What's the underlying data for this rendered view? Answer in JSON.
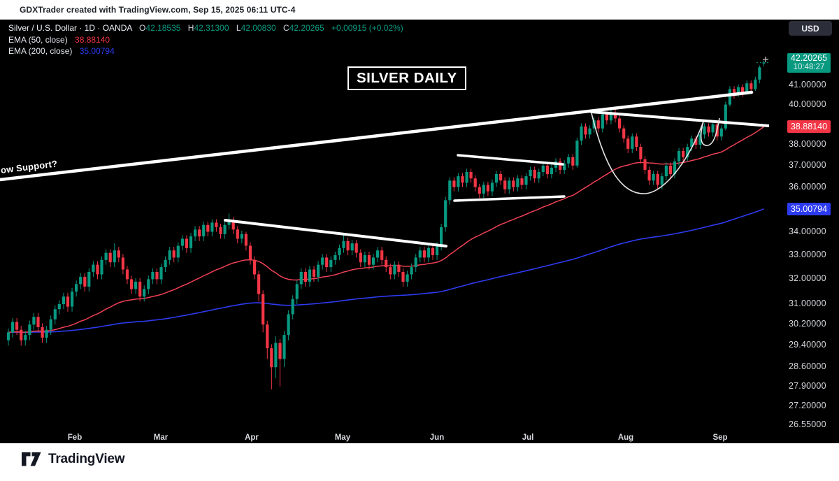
{
  "header": {
    "credit": "GDXTrader created with TradingView.com, Sep 15, 2025 06:11 UTC-4"
  },
  "legend": {
    "symbol": "Silver / U.S. Dollar · 1D · OANDA",
    "o_label": "O",
    "o_value": "42.18535",
    "h_label": "H",
    "h_value": "42.31300",
    "l_label": "L",
    "l_value": "42.00830",
    "c_label": "C",
    "c_value": "42.20265",
    "change": "+0.00915 (+0.02%)",
    "ema50_label": "EMA (50, close)",
    "ema50_value": "38.88140",
    "ema200_label": "EMA (200, close)",
    "ema200_value": "35.00794"
  },
  "toolbar": {
    "currency": "USD"
  },
  "annotations": {
    "title_box": "SILVER DAILY",
    "support_label": "ow Support?"
  },
  "price_scale": {
    "last_badge": {
      "price": "42.20265",
      "countdown": "10:48:27"
    },
    "ema50_badge": "38.88140",
    "ema200_badge": "35.00794",
    "ticks": [
      "41.00000",
      "40.00000",
      "38.00000",
      "37.00000",
      "36.00000",
      "34.00000",
      "33.00000",
      "32.00000",
      "31.00000",
      "30.20000",
      "29.40000",
      "28.60000",
      "27.90000",
      "27.20000",
      "26.55000"
    ]
  },
  "time_scale": {
    "months": [
      "Feb",
      "Mar",
      "Apr",
      "May",
      "Jun",
      "Jul",
      "Aug",
      "Sep"
    ]
  },
  "footer": {
    "brand": "TradingView"
  },
  "colors": {
    "up": "#089981",
    "down": "#f23645",
    "ema50_line": "#ef4155",
    "ema200_line": "#2d3bf0",
    "drawing": "#ffffff"
  },
  "chart_data": {
    "type": "candlestick",
    "symbol": "Silver / U.S. Dollar",
    "timeframe": "1D",
    "exchange": "OANDA",
    "scale": "log",
    "y_domain": [
      26.55,
      42.6
    ],
    "x_months": [
      "Feb",
      "Mar",
      "Apr",
      "May",
      "Jun",
      "Jul",
      "Aug",
      "Sep"
    ],
    "last": {
      "open": 42.18535,
      "high": 42.313,
      "low": 42.0083,
      "close": 42.20265,
      "change": 0.00915,
      "change_pct": 0.02
    },
    "ema50": 38.8814,
    "ema200": 35.00794,
    "candles": [
      [
        29.6,
        30.05,
        29.4,
        29.9
      ],
      [
        29.9,
        30.45,
        29.7,
        30.3
      ],
      [
        30.3,
        30.45,
        29.8,
        30.0
      ],
      [
        30.0,
        30.15,
        29.4,
        29.6
      ],
      [
        29.6,
        29.95,
        29.4,
        29.8
      ],
      [
        29.8,
        30.35,
        29.6,
        30.2
      ],
      [
        30.2,
        30.65,
        30.0,
        30.5
      ],
      [
        30.5,
        30.65,
        29.9,
        30.1
      ],
      [
        30.1,
        30.25,
        29.5,
        29.7
      ],
      [
        29.7,
        30.15,
        29.5,
        30.0
      ],
      [
        30.0,
        30.55,
        29.8,
        30.4
      ],
      [
        30.4,
        30.95,
        30.2,
        30.8
      ],
      [
        30.8,
        31.15,
        30.6,
        31.0
      ],
      [
        31.0,
        31.45,
        30.8,
        31.3
      ],
      [
        31.3,
        31.45,
        30.7,
        30.9
      ],
      [
        30.9,
        31.65,
        30.7,
        31.5
      ],
      [
        31.5,
        31.95,
        31.3,
        31.8
      ],
      [
        31.8,
        32.25,
        31.6,
        32.1
      ],
      [
        32.1,
        32.25,
        31.5,
        31.7
      ],
      [
        31.7,
        32.45,
        31.5,
        32.3
      ],
      [
        32.3,
        32.75,
        32.1,
        32.6
      ],
      [
        32.6,
        32.75,
        32.0,
        32.2
      ],
      [
        32.2,
        32.95,
        32.0,
        32.8
      ],
      [
        32.8,
        33.25,
        32.6,
        33.1
      ],
      [
        33.1,
        33.25,
        32.5,
        32.7
      ],
      [
        32.7,
        33.5,
        32.5,
        33.2
      ],
      [
        33.2,
        33.35,
        32.7,
        32.9
      ],
      [
        32.9,
        33.05,
        32.2,
        32.4
      ],
      [
        32.4,
        32.55,
        31.8,
        32.0
      ],
      [
        32.0,
        32.15,
        31.4,
        31.6
      ],
      [
        31.6,
        32.05,
        31.4,
        31.9
      ],
      [
        31.9,
        32.05,
        31.1,
        31.3
      ],
      [
        31.3,
        31.75,
        31.1,
        31.6
      ],
      [
        31.6,
        32.15,
        31.4,
        32.0
      ],
      [
        32.0,
        32.45,
        31.8,
        32.3
      ],
      [
        32.3,
        32.45,
        31.8,
        32.0
      ],
      [
        32.0,
        32.65,
        31.8,
        32.5
      ],
      [
        32.5,
        32.95,
        32.3,
        32.8
      ],
      [
        32.8,
        33.35,
        32.6,
        33.2
      ],
      [
        33.2,
        33.35,
        32.7,
        32.9
      ],
      [
        32.9,
        33.55,
        32.7,
        33.4
      ],
      [
        33.4,
        33.85,
        33.2,
        33.7
      ],
      [
        33.7,
        33.85,
        33.1,
        33.3
      ],
      [
        33.3,
        33.95,
        33.1,
        33.8
      ],
      [
        33.8,
        34.25,
        33.6,
        34.1
      ],
      [
        34.1,
        34.25,
        33.6,
        33.8
      ],
      [
        33.8,
        34.45,
        33.6,
        34.3
      ],
      [
        34.3,
        34.45,
        33.8,
        34.0
      ],
      [
        34.0,
        34.55,
        33.8,
        34.4
      ],
      [
        34.4,
        34.55,
        34.0,
        34.2
      ],
      [
        34.2,
        34.35,
        33.7,
        33.9
      ],
      [
        33.9,
        34.45,
        33.7,
        34.3
      ],
      [
        34.3,
        34.8,
        34.1,
        34.5
      ],
      [
        34.5,
        34.65,
        33.9,
        34.1
      ],
      [
        34.1,
        34.25,
        33.5,
        33.7
      ],
      [
        33.7,
        34.05,
        33.5,
        33.9
      ],
      [
        33.9,
        34.0,
        33.2,
        33.4
      ],
      [
        33.4,
        33.55,
        32.6,
        32.8
      ],
      [
        32.8,
        32.95,
        32.0,
        32.2
      ],
      [
        32.2,
        32.35,
        31.1,
        31.4
      ],
      [
        31.4,
        31.55,
        29.9,
        30.2
      ],
      [
        30.2,
        30.35,
        28.9,
        29.3
      ],
      [
        29.3,
        29.45,
        27.8,
        28.6
      ],
      [
        28.6,
        29.75,
        28.2,
        29.5
      ],
      [
        29.5,
        29.65,
        27.9,
        28.9
      ],
      [
        28.9,
        29.95,
        28.6,
        29.8
      ],
      [
        29.8,
        30.75,
        29.6,
        30.6
      ],
      [
        30.6,
        31.35,
        30.4,
        31.2
      ],
      [
        31.2,
        31.95,
        31.0,
        31.8
      ],
      [
        31.8,
        32.45,
        31.6,
        32.3
      ],
      [
        32.3,
        32.45,
        31.7,
        31.9
      ],
      [
        31.9,
        32.55,
        31.7,
        32.4
      ],
      [
        32.4,
        32.55,
        31.9,
        32.1
      ],
      [
        32.1,
        32.75,
        31.9,
        32.6
      ],
      [
        32.6,
        33.05,
        32.4,
        32.9
      ],
      [
        32.9,
        33.05,
        32.3,
        32.5
      ],
      [
        32.5,
        32.95,
        32.3,
        32.8
      ],
      [
        32.8,
        33.15,
        32.6,
        33.0
      ],
      [
        33.0,
        33.45,
        32.8,
        33.3
      ],
      [
        33.3,
        33.85,
        33.1,
        33.6
      ],
      [
        33.6,
        33.75,
        33.0,
        33.2
      ],
      [
        33.2,
        33.65,
        33.0,
        33.5
      ],
      [
        33.5,
        33.65,
        32.9,
        33.1
      ],
      [
        33.1,
        33.25,
        32.5,
        32.7
      ],
      [
        32.7,
        33.15,
        32.5,
        33.0
      ],
      [
        33.0,
        33.15,
        32.4,
        32.6
      ],
      [
        32.6,
        33.05,
        32.4,
        32.9
      ],
      [
        32.9,
        33.35,
        32.7,
        33.2
      ],
      [
        33.2,
        33.35,
        32.6,
        32.8
      ],
      [
        32.8,
        32.95,
        32.3,
        32.5
      ],
      [
        32.5,
        32.65,
        32.0,
        32.2
      ],
      [
        32.2,
        32.75,
        32.0,
        32.6
      ],
      [
        32.6,
        32.75,
        32.1,
        32.3
      ],
      [
        32.3,
        32.45,
        31.7,
        31.9
      ],
      [
        31.9,
        32.35,
        31.7,
        32.2
      ],
      [
        32.2,
        32.65,
        32.0,
        32.5
      ],
      [
        32.5,
        33.05,
        32.3,
        32.9
      ],
      [
        32.9,
        33.35,
        32.7,
        33.2
      ],
      [
        33.2,
        33.35,
        32.7,
        32.9
      ],
      [
        32.9,
        33.45,
        32.7,
        33.3
      ],
      [
        33.3,
        33.45,
        32.8,
        33.0
      ],
      [
        33.0,
        33.55,
        32.8,
        33.4
      ],
      [
        33.4,
        34.35,
        33.2,
        34.2
      ],
      [
        34.2,
        35.55,
        34.0,
        35.4
      ],
      [
        35.4,
        36.45,
        35.2,
        36.3
      ],
      [
        36.3,
        36.45,
        35.8,
        36.0
      ],
      [
        36.0,
        36.65,
        35.8,
        36.5
      ],
      [
        36.5,
        36.65,
        36.0,
        36.2
      ],
      [
        36.2,
        36.85,
        36.0,
        36.7
      ],
      [
        36.7,
        36.85,
        36.2,
        36.4
      ],
      [
        36.4,
        36.55,
        35.8,
        36.0
      ],
      [
        36.0,
        36.15,
        35.5,
        35.7
      ],
      [
        35.7,
        36.25,
        35.5,
        36.1
      ],
      [
        36.1,
        36.25,
        35.6,
        35.8
      ],
      [
        35.8,
        36.35,
        35.6,
        36.2
      ],
      [
        36.2,
        36.75,
        36.0,
        36.6
      ],
      [
        36.6,
        36.75,
        36.1,
        36.3
      ],
      [
        36.3,
        36.45,
        35.7,
        35.9
      ],
      [
        35.9,
        36.45,
        35.7,
        36.3
      ],
      [
        36.3,
        36.45,
        35.8,
        36.0
      ],
      [
        36.0,
        36.55,
        35.8,
        36.4
      ],
      [
        36.4,
        36.55,
        35.9,
        36.1
      ],
      [
        36.1,
        36.65,
        35.9,
        36.5
      ],
      [
        36.5,
        36.95,
        36.3,
        36.8
      ],
      [
        36.8,
        36.95,
        36.2,
        36.4
      ],
      [
        36.4,
        36.85,
        36.2,
        36.7
      ],
      [
        36.7,
        37.15,
        36.5,
        37.0
      ],
      [
        37.0,
        37.15,
        36.4,
        36.6
      ],
      [
        36.6,
        37.05,
        36.4,
        36.9
      ],
      [
        36.9,
        37.35,
        36.7,
        37.2
      ],
      [
        37.2,
        37.35,
        36.6,
        36.8
      ],
      [
        36.8,
        37.25,
        36.6,
        37.1
      ],
      [
        37.1,
        37.55,
        36.9,
        37.4
      ],
      [
        37.4,
        37.55,
        36.8,
        37.0
      ],
      [
        37.0,
        38.35,
        36.9,
        38.2
      ],
      [
        38.2,
        39.05,
        38.0,
        38.9
      ],
      [
        38.9,
        39.05,
        38.3,
        38.5
      ],
      [
        38.5,
        38.95,
        38.3,
        38.8
      ],
      [
        38.8,
        39.35,
        38.6,
        39.2
      ],
      [
        39.2,
        39.35,
        38.6,
        38.8
      ],
      [
        38.8,
        39.65,
        38.6,
        39.5
      ],
      [
        39.5,
        39.65,
        39.0,
        39.2
      ],
      [
        39.2,
        39.75,
        39.0,
        39.6
      ],
      [
        39.6,
        39.85,
        39.1,
        39.3
      ],
      [
        39.3,
        39.45,
        38.6,
        38.8
      ],
      [
        38.8,
        38.95,
        38.1,
        38.3
      ],
      [
        38.3,
        38.45,
        37.6,
        37.8
      ],
      [
        37.8,
        38.55,
        37.6,
        38.4
      ],
      [
        38.4,
        38.55,
        37.7,
        37.9
      ],
      [
        37.9,
        38.05,
        37.1,
        37.3
      ],
      [
        37.3,
        37.45,
        36.6,
        36.8
      ],
      [
        36.8,
        36.95,
        36.1,
        36.3
      ],
      [
        36.3,
        36.75,
        36.1,
        36.6
      ],
      [
        36.6,
        36.75,
        35.9,
        36.1
      ],
      [
        36.1,
        36.65,
        35.9,
        36.5
      ],
      [
        36.5,
        37.15,
        36.3,
        37.0
      ],
      [
        37.0,
        37.15,
        36.4,
        36.6
      ],
      [
        36.6,
        37.35,
        36.4,
        37.2
      ],
      [
        37.2,
        37.85,
        37.0,
        37.7
      ],
      [
        37.7,
        37.85,
        37.2,
        37.4
      ],
      [
        37.4,
        38.05,
        37.2,
        37.9
      ],
      [
        37.9,
        38.45,
        37.7,
        38.3
      ],
      [
        38.3,
        38.45,
        37.8,
        38.0
      ],
      [
        38.0,
        38.65,
        37.8,
        38.5
      ],
      [
        38.5,
        39.05,
        38.3,
        38.9
      ],
      [
        38.9,
        39.05,
        38.4,
        38.6
      ],
      [
        38.6,
        39.15,
        38.4,
        39.0
      ],
      [
        39.0,
        39.15,
        38.2,
        38.4
      ],
      [
        38.4,
        38.95,
        38.2,
        38.8
      ],
      [
        38.8,
        40.15,
        38.7,
        40.0
      ],
      [
        40.0,
        40.95,
        39.9,
        40.8
      ],
      [
        40.8,
        40.95,
        40.3,
        40.5
      ],
      [
        40.5,
        41.05,
        40.4,
        40.9
      ],
      [
        40.9,
        41.05,
        40.4,
        40.6
      ],
      [
        40.6,
        41.25,
        40.5,
        41.1
      ],
      [
        41.1,
        41.25,
        40.6,
        40.8
      ],
      [
        40.8,
        41.45,
        40.7,
        41.3
      ],
      [
        41.3,
        42.05,
        41.1,
        41.95
      ],
      [
        42.18535,
        42.313,
        42.0083,
        42.20265
      ]
    ]
  }
}
